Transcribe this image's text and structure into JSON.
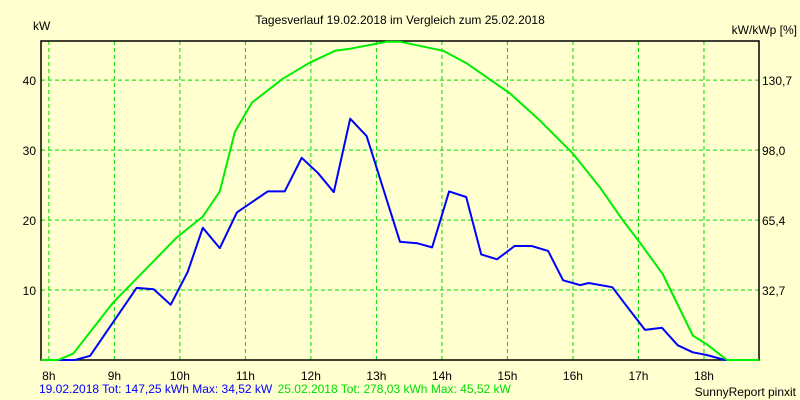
{
  "chart_data": {
    "type": "line",
    "title": "Tagesverlauf 19.02.2018 im Vergleich zum 25.02.2018",
    "ylabel": "kW",
    "ylabel_right": "kW/kWp [%]",
    "xlim": [
      7.88,
      18.84
    ],
    "ylim": [
      0,
      45.6
    ],
    "x_ticks": [
      {
        "v": 8,
        "label": "8h"
      },
      {
        "v": 9,
        "label": "9h"
      },
      {
        "v": 10,
        "label": "10h"
      },
      {
        "v": 11,
        "label": "11h"
      },
      {
        "v": 12,
        "label": "12h"
      },
      {
        "v": 13,
        "label": "13h"
      },
      {
        "v": 14,
        "label": "14h"
      },
      {
        "v": 15,
        "label": "15h"
      },
      {
        "v": 16,
        "label": "16h"
      },
      {
        "v": 17,
        "label": "17h"
      },
      {
        "v": 18,
        "label": "18h"
      }
    ],
    "y_ticks": [
      {
        "v": 10,
        "label": "10"
      },
      {
        "v": 20,
        "label": "20"
      },
      {
        "v": 30,
        "label": "30"
      },
      {
        "v": 40,
        "label": "40"
      }
    ],
    "y_ticks_right": [
      {
        "v": 10,
        "label": "32,7"
      },
      {
        "v": 20,
        "label": "65,4"
      },
      {
        "v": 30,
        "label": "98,0"
      },
      {
        "v": 40,
        "label": "130,7"
      }
    ],
    "grid": true,
    "series": [
      {
        "name": "19.02.2018",
        "legend": "19.02.2018 Tot: 147,25 kWh Max: 34,52 kW",
        "color": "#0000ff",
        "points": [
          [
            7.88,
            0
          ],
          [
            8.4,
            0
          ],
          [
            8.63,
            0.6
          ],
          [
            9.34,
            10.3
          ],
          [
            9.6,
            10.1
          ],
          [
            9.86,
            7.9
          ],
          [
            10.12,
            12.6
          ],
          [
            10.35,
            18.9
          ],
          [
            10.61,
            16.0
          ],
          [
            10.87,
            21.1
          ],
          [
            11.34,
            24.1
          ],
          [
            11.6,
            24.1
          ],
          [
            11.86,
            28.9
          ],
          [
            12.11,
            26.7
          ],
          [
            12.35,
            24.0
          ],
          [
            12.6,
            34.5
          ],
          [
            12.85,
            32.0
          ],
          [
            13.36,
            16.9
          ],
          [
            13.62,
            16.7
          ],
          [
            13.85,
            16.1
          ],
          [
            14.11,
            24.1
          ],
          [
            14.37,
            23.3
          ],
          [
            14.6,
            15.1
          ],
          [
            14.84,
            14.4
          ],
          [
            15.11,
            16.3
          ],
          [
            15.37,
            16.3
          ],
          [
            15.62,
            15.6
          ],
          [
            15.85,
            11.4
          ],
          [
            16.11,
            10.7
          ],
          [
            16.24,
            11.0
          ],
          [
            16.6,
            10.4
          ],
          [
            16.87,
            7.1
          ],
          [
            17.1,
            4.3
          ],
          [
            17.36,
            4.6
          ],
          [
            17.6,
            2.1
          ],
          [
            17.83,
            1.1
          ],
          [
            18.05,
            0.7
          ],
          [
            18.32,
            0
          ],
          [
            18.84,
            0
          ]
        ]
      },
      {
        "name": "25.02.2018",
        "legend": "25.02.2018 Tot: 278,03 kWh Max: 45,52 kW",
        "color": "#00ee00",
        "points": [
          [
            7.88,
            0
          ],
          [
            8.14,
            0
          ],
          [
            8.37,
            0.9
          ],
          [
            8.98,
            8.2
          ],
          [
            9.95,
            17.5
          ],
          [
            10.35,
            20.5
          ],
          [
            10.61,
            24.1
          ],
          [
            10.84,
            32.6
          ],
          [
            11.1,
            36.8
          ],
          [
            11.57,
            40.2
          ],
          [
            11.98,
            42.5
          ],
          [
            12.37,
            44.2
          ],
          [
            12.6,
            44.5
          ],
          [
            13.16,
            45.5
          ],
          [
            13.36,
            45.5
          ],
          [
            14.02,
            44.2
          ],
          [
            14.38,
            42.4
          ],
          [
            15.04,
            38.1
          ],
          [
            15.5,
            34.2
          ],
          [
            16.0,
            29.5
          ],
          [
            16.41,
            24.7
          ],
          [
            16.76,
            20.0
          ],
          [
            17.02,
            16.8
          ],
          [
            17.37,
            12.3
          ],
          [
            17.83,
            3.5
          ],
          [
            18.05,
            2.2
          ],
          [
            18.35,
            0
          ],
          [
            18.84,
            0
          ]
        ]
      }
    ]
  },
  "footer": {
    "credit": "SunnyReport pinxit"
  },
  "colors": {
    "background": "#ffffd0",
    "grid": "#00dd00"
  }
}
